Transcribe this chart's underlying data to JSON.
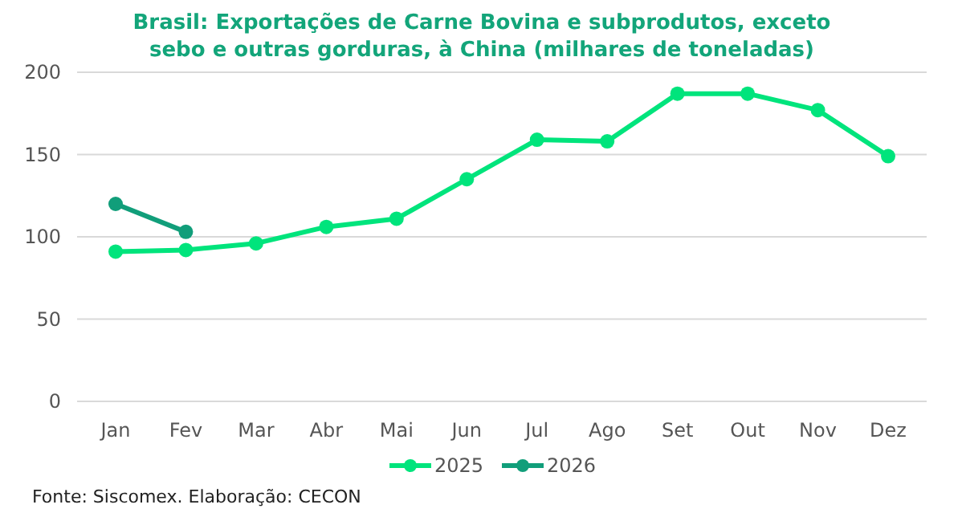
{
  "chart_data": {
    "type": "line",
    "title": "Brasil: Exportações de Carne Bovina e subprodutos, exceto sebo e outras gorduras, à China (milhares de toneladas)",
    "categories": [
      "Jan",
      "Fev",
      "Mar",
      "Abr",
      "Mai",
      "Jun",
      "Jul",
      "Ago",
      "Set",
      "Out",
      "Nov",
      "Dez"
    ],
    "series": [
      {
        "name": "2025",
        "color": "#00e47c",
        "values": [
          91,
          92,
          96,
          106,
          111,
          135,
          159,
          158,
          187,
          187,
          177,
          149
        ]
      },
      {
        "name": "2026",
        "color": "#119e7a",
        "values": [
          120,
          103,
          null,
          null,
          null,
          null,
          null,
          null,
          null,
          null,
          null,
          null
        ]
      }
    ],
    "ylim": [
      0,
      200
    ],
    "yticks": [
      0,
      50,
      100,
      150,
      200
    ],
    "grid": "y",
    "legend": "bottom",
    "marker": "circle",
    "line_style": "solid",
    "annotations": [
      "Fonte: Siscomex. Elaboração: CECON"
    ]
  }
}
